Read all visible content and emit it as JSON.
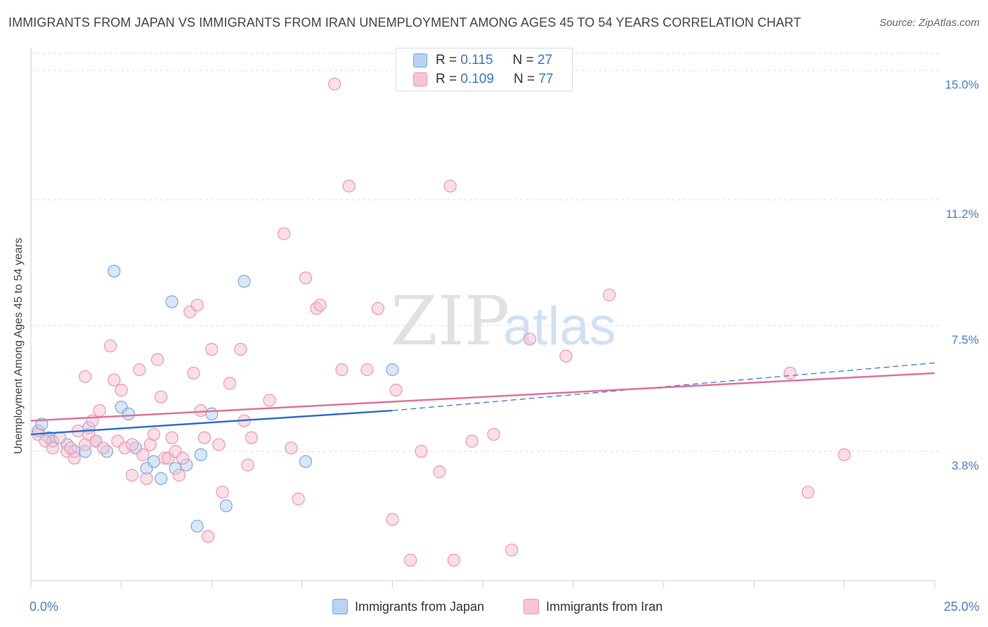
{
  "header": {
    "title": "IMMIGRANTS FROM JAPAN VS IMMIGRANTS FROM IRAN UNEMPLOYMENT AMONG AGES 45 TO 54 YEARS CORRELATION CHART",
    "source": "Source: ZipAtlas.com"
  },
  "watermark": {
    "zip": "ZIP",
    "atlas": "atlas"
  },
  "stats": {
    "japan": {
      "r_label": "R =",
      "r_value": "0.115",
      "n_label": "N =",
      "n_value": "27"
    },
    "iran": {
      "r_label": "R =",
      "r_value": "0.109",
      "n_label": "N =",
      "n_value": "77"
    }
  },
  "legend": {
    "japan": "Immigrants from Japan",
    "iran": "Immigrants from Iran"
  },
  "colors": {
    "japan_fill": "#b8d3f3",
    "japan_stroke": "#7aa7df",
    "japan_line": "#2f6fc9",
    "iran_fill": "#f8c4d4",
    "iran_stroke": "#eb97b2",
    "iran_line": "#e0729a",
    "tick_label": "#4a7ec9",
    "grid": "#dddddd"
  },
  "chart_data": {
    "type": "scatter",
    "xlabel": "",
    "ylabel": "Unemployment Among Ages 45 to 54 years",
    "xlim": [
      0,
      25
    ],
    "ylim": [
      0,
      15.5
    ],
    "x_tick_labels": [
      {
        "value": 0,
        "label": "0.0%"
      },
      {
        "value": 25,
        "label": "25.0%"
      }
    ],
    "y_ticks": [
      {
        "value": 3.8,
        "label": "3.8%"
      },
      {
        "value": 7.5,
        "label": "7.5%"
      },
      {
        "value": 11.2,
        "label": "11.2%"
      },
      {
        "value": 15.0,
        "label": "15.0%"
      }
    ],
    "series": [
      {
        "name": "Immigrants from Japan",
        "points": [
          [
            0.2,
            4.4
          ],
          [
            0.3,
            4.6
          ],
          [
            0.5,
            4.2
          ],
          [
            0.6,
            4.1
          ],
          [
            1.0,
            4.0
          ],
          [
            1.2,
            3.8
          ],
          [
            1.5,
            3.8
          ],
          [
            1.6,
            4.5
          ],
          [
            1.8,
            4.1
          ],
          [
            2.1,
            3.8
          ],
          [
            2.3,
            9.1
          ],
          [
            2.5,
            5.1
          ],
          [
            2.7,
            4.9
          ],
          [
            2.9,
            3.9
          ],
          [
            3.2,
            3.3
          ],
          [
            3.4,
            3.5
          ],
          [
            3.6,
            3.0
          ],
          [
            3.9,
            8.2
          ],
          [
            4.0,
            3.3
          ],
          [
            4.3,
            3.4
          ],
          [
            4.6,
            1.6
          ],
          [
            4.7,
            3.7
          ],
          [
            5.0,
            4.9
          ],
          [
            5.4,
            2.2
          ],
          [
            5.9,
            8.8
          ],
          [
            7.6,
            3.5
          ],
          [
            10.0,
            6.2
          ]
        ],
        "trend": {
          "x0": 0,
          "y0": 4.3,
          "x1": 10.0,
          "y1": 5.0,
          "dash_x1": 25,
          "dash_y1": 6.4
        }
      },
      {
        "name": "Immigrants from Iran",
        "points": [
          [
            0.2,
            4.3
          ],
          [
            0.4,
            4.1
          ],
          [
            0.6,
            3.9
          ],
          [
            0.8,
            4.2
          ],
          [
            1.0,
            3.8
          ],
          [
            1.2,
            3.6
          ],
          [
            1.3,
            4.4
          ],
          [
            1.5,
            4.0
          ],
          [
            1.5,
            6.0
          ],
          [
            1.6,
            4.3
          ],
          [
            1.7,
            4.7
          ],
          [
            1.8,
            4.1
          ],
          [
            1.9,
            5.0
          ],
          [
            2.0,
            3.9
          ],
          [
            2.2,
            6.9
          ],
          [
            2.3,
            5.9
          ],
          [
            2.4,
            4.1
          ],
          [
            2.5,
            5.6
          ],
          [
            2.6,
            3.9
          ],
          [
            2.8,
            3.1
          ],
          [
            3.0,
            6.2
          ],
          [
            3.1,
            3.7
          ],
          [
            3.2,
            3.0
          ],
          [
            3.3,
            4.0
          ],
          [
            3.4,
            4.3
          ],
          [
            3.5,
            6.5
          ],
          [
            3.6,
            5.4
          ],
          [
            3.7,
            3.6
          ],
          [
            3.8,
            3.6
          ],
          [
            4.0,
            3.8
          ],
          [
            4.1,
            3.1
          ],
          [
            4.2,
            3.6
          ],
          [
            4.4,
            7.9
          ],
          [
            4.5,
            6.1
          ],
          [
            4.6,
            8.1
          ],
          [
            4.7,
            5.0
          ],
          [
            4.8,
            4.2
          ],
          [
            4.9,
            1.3
          ],
          [
            5.0,
            6.8
          ],
          [
            5.2,
            4.0
          ],
          [
            5.3,
            2.6
          ],
          [
            5.5,
            5.8
          ],
          [
            5.8,
            6.8
          ],
          [
            5.9,
            4.7
          ],
          [
            6.0,
            3.4
          ],
          [
            6.1,
            4.2
          ],
          [
            6.6,
            5.3
          ],
          [
            7.0,
            10.2
          ],
          [
            7.2,
            3.9
          ],
          [
            7.4,
            2.4
          ],
          [
            7.6,
            8.9
          ],
          [
            7.9,
            8.0
          ],
          [
            8.0,
            8.1
          ],
          [
            8.4,
            14.6
          ],
          [
            8.6,
            6.2
          ],
          [
            8.8,
            11.6
          ],
          [
            9.3,
            6.2
          ],
          [
            9.6,
            8.0
          ],
          [
            10.0,
            1.8
          ],
          [
            10.1,
            5.6
          ],
          [
            10.5,
            0.6
          ],
          [
            10.8,
            3.8
          ],
          [
            11.3,
            3.2
          ],
          [
            11.6,
            11.6
          ],
          [
            11.7,
            0.6
          ],
          [
            12.2,
            4.1
          ],
          [
            12.8,
            4.3
          ],
          [
            13.3,
            0.9
          ],
          [
            13.8,
            7.1
          ],
          [
            14.8,
            6.6
          ],
          [
            16.0,
            8.4
          ],
          [
            21.0,
            6.1
          ],
          [
            21.5,
            2.6
          ],
          [
            22.5,
            3.7
          ],
          [
            3.9,
            4.2
          ],
          [
            2.8,
            4.0
          ],
          [
            1.1,
            3.9
          ]
        ],
        "trend": {
          "x0": 0,
          "y0": 4.7,
          "x1": 25,
          "y1": 6.1
        }
      }
    ],
    "grid": true,
    "legend_position": "bottom-center"
  }
}
